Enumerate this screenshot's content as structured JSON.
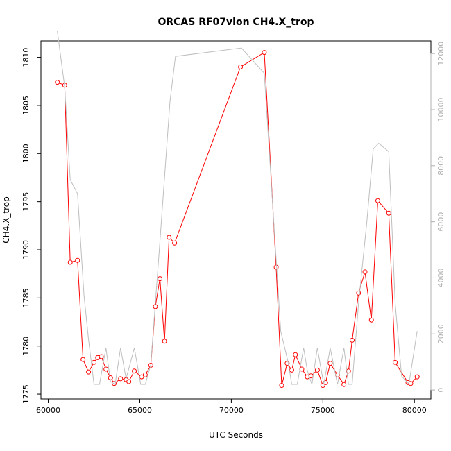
{
  "chart_data": {
    "type": "line",
    "title": "ORCAS RF07vlon CH4.X_trop",
    "xlabel": "UTC Seconds",
    "ylabel": "CH4.X_trop",
    "xlim": [
      59600,
      80900
    ],
    "ylim": [
      1774.5,
      1811.7
    ],
    "y2lim": [
      -320,
      12450
    ],
    "x_ticks": [
      60000,
      65000,
      70000,
      75000,
      80000
    ],
    "y_ticks": [
      1775,
      1780,
      1785,
      1790,
      1795,
      1800,
      1805,
      1810
    ],
    "y2_ticks": [
      0,
      2000,
      4000,
      6000,
      8000,
      10000,
      12000
    ],
    "colors": {
      "primary": "#ff0000",
      "secondary": "#bebebe"
    },
    "series": [
      {
        "axis": "left",
        "color": "#ff0000",
        "markers": "open-circle",
        "points": [
          [
            60500,
            1807.4
          ],
          [
            60900,
            1807.1
          ],
          [
            61200,
            1788.7
          ],
          [
            61600,
            1788.9
          ],
          [
            61900,
            1778.6
          ],
          [
            62200,
            1777.3
          ],
          [
            62500,
            1778.3
          ],
          [
            62700,
            1778.8
          ],
          [
            62900,
            1778.9
          ],
          [
            63150,
            1777.6
          ],
          [
            63400,
            1776.7
          ],
          [
            63600,
            1776.1
          ],
          [
            63950,
            1776.6
          ],
          [
            64250,
            1776.5
          ],
          [
            64400,
            1776.3
          ],
          [
            64700,
            1777.4
          ],
          [
            65100,
            1776.8
          ],
          [
            65300,
            1777.0
          ],
          [
            65600,
            1778.0
          ],
          [
            65850,
            1784.1
          ],
          [
            66100,
            1787.0
          ],
          [
            66350,
            1780.5
          ],
          [
            66600,
            1791.3
          ],
          [
            66900,
            1790.7
          ],
          [
            70500,
            1809.0
          ],
          [
            71800,
            1810.5
          ],
          [
            72450,
            1788.2
          ],
          [
            72750,
            1775.9
          ],
          [
            73050,
            1778.2
          ],
          [
            73300,
            1777.5
          ],
          [
            73500,
            1779.1
          ],
          [
            73850,
            1777.6
          ],
          [
            74150,
            1776.8
          ],
          [
            74350,
            1776.9
          ],
          [
            74700,
            1777.5
          ],
          [
            75000,
            1775.9
          ],
          [
            75150,
            1776.2
          ],
          [
            75400,
            1778.2
          ],
          [
            75800,
            1777.0
          ],
          [
            76150,
            1776.0
          ],
          [
            76400,
            1777.4
          ],
          [
            76600,
            1780.6
          ],
          [
            76950,
            1785.5
          ],
          [
            77300,
            1787.7
          ],
          [
            77650,
            1782.7
          ],
          [
            78000,
            1795.1
          ],
          [
            78600,
            1793.8
          ],
          [
            78950,
            1778.3
          ],
          [
            79650,
            1776.2
          ],
          [
            79800,
            1776.1
          ],
          [
            80150,
            1776.8
          ]
        ]
      },
      {
        "axis": "right",
        "color": "#bebebe",
        "markers": "none",
        "points": [
          [
            60500,
            12800
          ],
          [
            60900,
            10800
          ],
          [
            61200,
            7500
          ],
          [
            61600,
            7000
          ],
          [
            61950,
            3400
          ],
          [
            62200,
            1800
          ],
          [
            62500,
            200
          ],
          [
            62800,
            200
          ],
          [
            63150,
            1500
          ],
          [
            63400,
            300
          ],
          [
            63650,
            200
          ],
          [
            63950,
            1500
          ],
          [
            64250,
            400
          ],
          [
            64700,
            1500
          ],
          [
            65050,
            200
          ],
          [
            65300,
            200
          ],
          [
            65600,
            900
          ],
          [
            66100,
            5300
          ],
          [
            66650,
            10300
          ],
          [
            66950,
            11900
          ],
          [
            70550,
            12200
          ],
          [
            71800,
            11300
          ],
          [
            72700,
            2100
          ],
          [
            73100,
            1000
          ],
          [
            73300,
            200
          ],
          [
            73600,
            200
          ],
          [
            73950,
            1500
          ],
          [
            74150,
            700
          ],
          [
            74400,
            200
          ],
          [
            74700,
            1500
          ],
          [
            75050,
            200
          ],
          [
            75400,
            1500
          ],
          [
            75800,
            200
          ],
          [
            76150,
            1500
          ],
          [
            76400,
            200
          ],
          [
            76600,
            200
          ],
          [
            76950,
            3100
          ],
          [
            77400,
            6000
          ],
          [
            77750,
            8600
          ],
          [
            78050,
            8800
          ],
          [
            78600,
            8500
          ],
          [
            78950,
            3100
          ],
          [
            79300,
            500
          ],
          [
            79700,
            200
          ],
          [
            80150,
            2100
          ]
        ]
      }
    ]
  }
}
